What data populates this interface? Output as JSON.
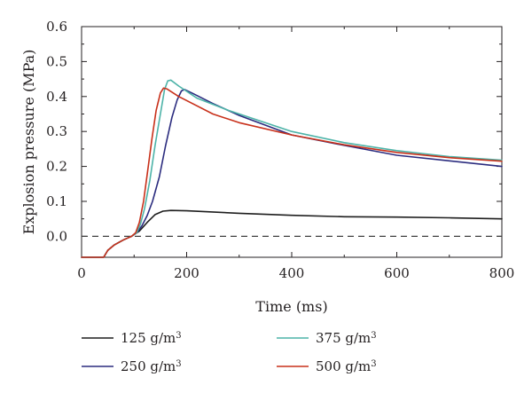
{
  "chart_data": {
    "type": "line",
    "title": "",
    "xlabel": "Time (ms)",
    "ylabel": "Explosion pressure (MPa)",
    "xlim": [
      0,
      800
    ],
    "ylim": [
      -0.06,
      0.6
    ],
    "xticks": [
      0,
      200,
      400,
      600,
      800
    ],
    "yticks": [
      0.0,
      0.1,
      0.2,
      0.3,
      0.4,
      0.5,
      0.6
    ],
    "xtick_labels": [
      "0",
      "200",
      "400",
      "600",
      "800"
    ],
    "ytick_labels": [
      "0.0",
      "0.1",
      "0.2",
      "0.3",
      "0.4",
      "0.5",
      "0.6"
    ],
    "grid": false,
    "reference_line": {
      "y": 0.0,
      "style": "dashed",
      "color": "#404040"
    },
    "legend": {
      "placement": "below",
      "columns": 2
    },
    "series": [
      {
        "name": "125 g/m",
        "sup": "3",
        "color": "#1e1e1e",
        "points": [
          [
            0,
            -0.06
          ],
          [
            42,
            -0.06
          ],
          [
            50,
            -0.04
          ],
          [
            62,
            -0.025
          ],
          [
            80,
            -0.01
          ],
          [
            95,
            0.0
          ],
          [
            110,
            0.015
          ],
          [
            125,
            0.04
          ],
          [
            140,
            0.062
          ],
          [
            155,
            0.072
          ],
          [
            170,
            0.074
          ],
          [
            200,
            0.073
          ],
          [
            300,
            0.066
          ],
          [
            400,
            0.06
          ],
          [
            500,
            0.056
          ],
          [
            600,
            0.055
          ],
          [
            700,
            0.053
          ],
          [
            800,
            0.05
          ]
        ]
      },
      {
        "name": "250 g/m",
        "sup": "3",
        "color": "#2b2c7f",
        "points": [
          [
            0,
            -0.06
          ],
          [
            42,
            -0.06
          ],
          [
            50,
            -0.04
          ],
          [
            62,
            -0.025
          ],
          [
            80,
            -0.01
          ],
          [
            95,
            0.0
          ],
          [
            105,
            0.01
          ],
          [
            115,
            0.03
          ],
          [
            125,
            0.06
          ],
          [
            135,
            0.1
          ],
          [
            148,
            0.17
          ],
          [
            160,
            0.26
          ],
          [
            172,
            0.34
          ],
          [
            182,
            0.39
          ],
          [
            190,
            0.416
          ],
          [
            196,
            0.42
          ],
          [
            210,
            0.41
          ],
          [
            250,
            0.38
          ],
          [
            300,
            0.346
          ],
          [
            400,
            0.29
          ],
          [
            500,
            0.26
          ],
          [
            600,
            0.232
          ],
          [
            700,
            0.216
          ],
          [
            800,
            0.2
          ]
        ]
      },
      {
        "name": "375 g/m",
        "sup": "3",
        "color": "#4db3a8",
        "points": [
          [
            0,
            -0.06
          ],
          [
            42,
            -0.06
          ],
          [
            50,
            -0.04
          ],
          [
            62,
            -0.025
          ],
          [
            80,
            -0.01
          ],
          [
            95,
            0.0
          ],
          [
            105,
            0.01
          ],
          [
            112,
            0.035
          ],
          [
            120,
            0.08
          ],
          [
            130,
            0.16
          ],
          [
            140,
            0.26
          ],
          [
            150,
            0.35
          ],
          [
            158,
            0.42
          ],
          [
            164,
            0.445
          ],
          [
            170,
            0.447
          ],
          [
            185,
            0.43
          ],
          [
            220,
            0.395
          ],
          [
            280,
            0.36
          ],
          [
            400,
            0.3
          ],
          [
            500,
            0.268
          ],
          [
            600,
            0.245
          ],
          [
            700,
            0.228
          ],
          [
            800,
            0.218
          ]
        ]
      },
      {
        "name": "500 g/m",
        "sup": "3",
        "color": "#c8301a",
        "points": [
          [
            0,
            -0.06
          ],
          [
            42,
            -0.06
          ],
          [
            50,
            -0.04
          ],
          [
            62,
            -0.025
          ],
          [
            80,
            -0.01
          ],
          [
            95,
            0.0
          ],
          [
            103,
            0.01
          ],
          [
            110,
            0.04
          ],
          [
            118,
            0.1
          ],
          [
            126,
            0.19
          ],
          [
            134,
            0.28
          ],
          [
            142,
            0.36
          ],
          [
            150,
            0.41
          ],
          [
            156,
            0.424
          ],
          [
            162,
            0.422
          ],
          [
            185,
            0.4
          ],
          [
            250,
            0.35
          ],
          [
            300,
            0.325
          ],
          [
            400,
            0.29
          ],
          [
            500,
            0.262
          ],
          [
            600,
            0.24
          ],
          [
            700,
            0.225
          ],
          [
            800,
            0.215
          ]
        ]
      }
    ]
  }
}
